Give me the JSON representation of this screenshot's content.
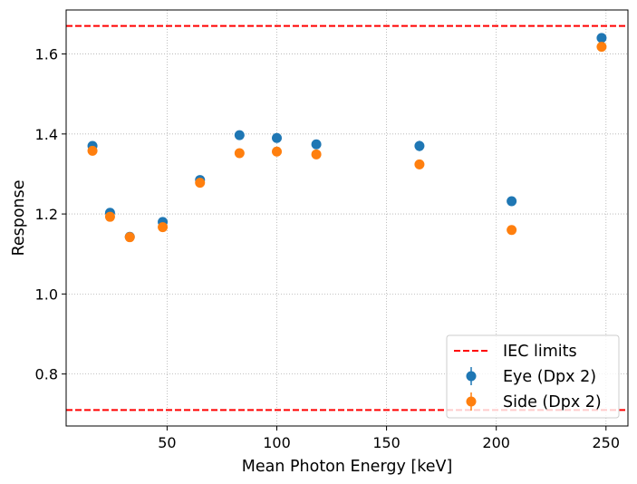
{
  "chart_data": {
    "type": "scatter",
    "title": "",
    "xlabel": "Mean Photon Energy [keV]",
    "ylabel": "Response",
    "xlim": [
      4,
      260
    ],
    "ylim": [
      0.67,
      1.71
    ],
    "xticks": [
      50,
      100,
      150,
      200,
      250
    ],
    "yticks": [
      0.8,
      1.0,
      1.2,
      1.4,
      1.6
    ],
    "xtick_labels": [
      "50",
      "100",
      "150",
      "200",
      "250"
    ],
    "ytick_labels": [
      "0.8",
      "1.0",
      "1.2",
      "1.4",
      "1.6"
    ],
    "grid": true,
    "legend_position": "lower-right",
    "reference_lines": [
      {
        "name": "IEC limits",
        "y": 1.67,
        "color": "#ff0000",
        "style": "dashed"
      },
      {
        "name": "IEC limits",
        "y": 0.71,
        "color": "#ff0000",
        "style": "dashed"
      }
    ],
    "series": [
      {
        "name": "Eye (Dpx 2)",
        "color": "#1f77b4",
        "x": [
          16,
          24,
          33,
          48,
          65,
          83,
          100,
          118,
          165,
          207,
          248
        ],
        "y": [
          1.37,
          1.203,
          1.143,
          1.18,
          1.285,
          1.397,
          1.39,
          1.374,
          1.37,
          1.232,
          1.64
        ],
        "err": [
          0.005,
          0.004,
          0.004,
          0.004,
          0.005,
          0.005,
          0.005,
          0.005,
          0.013,
          0.006,
          0.01
        ]
      },
      {
        "name": "Side (Dpx 2)",
        "color": "#ff7f0e",
        "x": [
          16,
          24,
          33,
          48,
          65,
          83,
          100,
          118,
          165,
          207,
          248
        ],
        "y": [
          1.358,
          1.193,
          1.142,
          1.167,
          1.278,
          1.352,
          1.356,
          1.349,
          1.324,
          1.16,
          1.618
        ],
        "err": [
          0.005,
          0.004,
          0.004,
          0.004,
          0.005,
          0.005,
          0.005,
          0.005,
          0.012,
          0.005,
          0.01
        ]
      }
    ],
    "legend": [
      "IEC limits",
      "Eye (Dpx 2)",
      "Side (Dpx 2)"
    ]
  }
}
